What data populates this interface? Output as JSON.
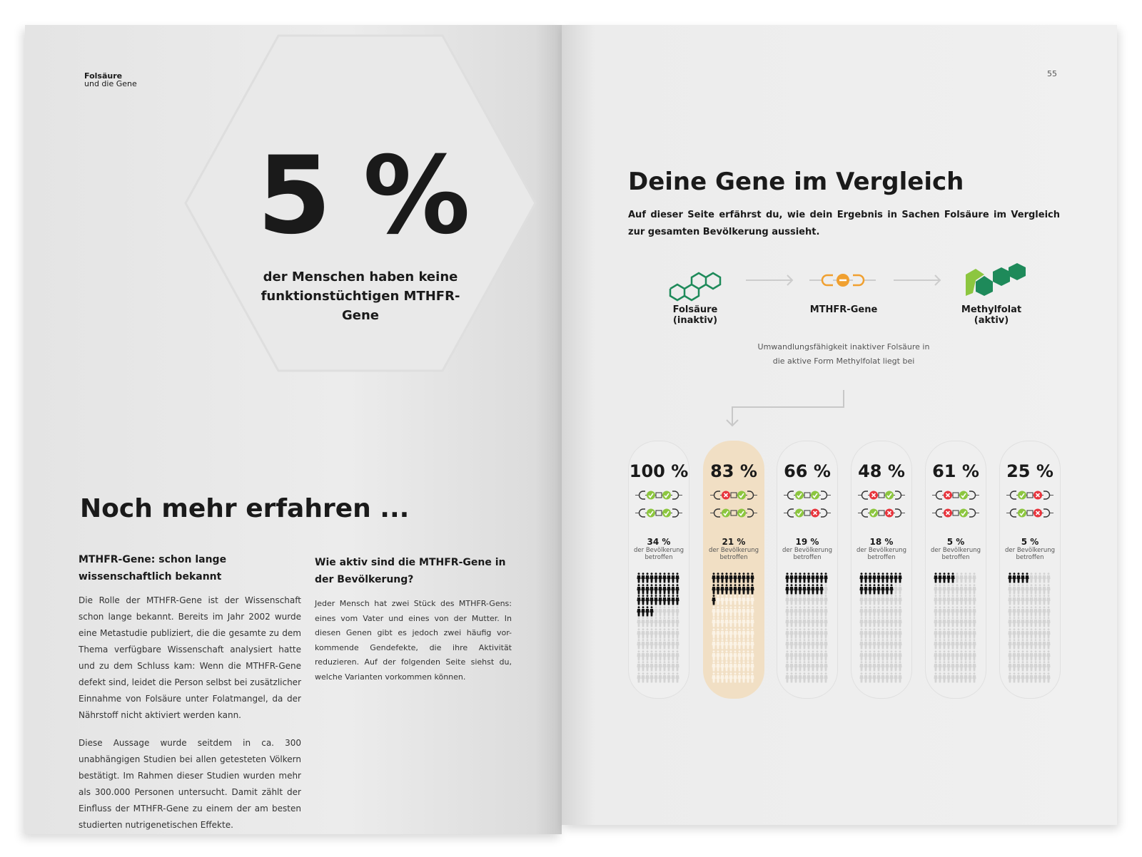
{
  "left_page": {
    "running_head": {
      "line1": "Folsäure",
      "line2": "und die Gene"
    },
    "big_number": "5 %",
    "big_caption": "der Menschen haben keine funktionstüchtigen MTHFR-Gene",
    "section_title": "Noch mehr erfahren ...",
    "col1": {
      "heading": "MTHFR-Gene: schon lange wissenschaftlich bekannt",
      "para1": "Die Rolle der MTHFR-Gene ist der Wissenschaft schon lange bekannt. Bereits im Jahr 2002 wurde eine Metastudie publiziert, die die gesamte zu dem Thema verfügbare Wissenschaft analysiert hatte und zu dem Schluss kam: Wenn die MTHFR-Gene defekt sind, leidet die Person selbst bei zusätzlicher Einnahme von Folsäure unter Folatmangel, da der Nährstoff nicht aktiviert werden kann.",
      "para2": "Diese Aussage wurde seitdem in ca. 300 unabhängigen Studien bei allen getesteten Völkern bestätigt. Im Rahmen dieser Studien wurden mehr als 300.000 Personen untersucht. Damit zählt der Einfluss der MTHFR-Gene zu einem der am besten studierten nutrigenetischen Effekte."
    },
    "col2": {
      "heading": "Wie aktiv sind die MTHFR-Gene in der Bevölkerung?",
      "para1": "Jeder Mensch hat zwei Stück des MTHFR-Gens: eines vom Vater und eines von der Mutter. In diesen Genen gibt es jedoch zwei häufig vor- kommende Gendefekte, die ihre Aktivität reduzieren. Auf der folgenden Seite siehst du, welche Varianten vorkommen können."
    }
  },
  "right_page": {
    "page_number": "55",
    "title": "Deine Gene im Vergleich",
    "intro": "Auf dieser Seite erfährst du, wie dein Ergebnis in Sachen Folsäure im Vergleich zur gesamten Bevölkerung aussieht.",
    "flow": [
      {
        "label": "Folsäure",
        "sub": "(inaktiv)",
        "icon": "molecule-outline-icon"
      },
      {
        "label": "MTHFR-Gene",
        "sub": "",
        "icon": "gene-icon"
      },
      {
        "label": "Methylfolat",
        "sub": "(aktiv)",
        "icon": "molecule-filled-icon"
      }
    ],
    "description": "Umwandlungsfähigkeit inaktiver Folsäure in die aktive Form Methylfolat liegt bei",
    "affected_label": "der Bevölkerung betroffen",
    "colors": {
      "ok": "#8cc63f",
      "defect": "#e8343c",
      "highlight": "#f1dfc4",
      "gene": "#f0a030",
      "molecule": "#1e8a5a"
    },
    "cards": [
      {
        "activity": "100 %",
        "share": "34 %",
        "affected": 34,
        "genes": [
          [
            "ok",
            "ok"
          ],
          [
            "ok",
            "ok"
          ]
        ],
        "highlight": false
      },
      {
        "activity": "83 %",
        "share": "21 %",
        "affected": 21,
        "genes": [
          [
            "defect",
            "ok"
          ],
          [
            "ok",
            "ok"
          ]
        ],
        "highlight": true
      },
      {
        "activity": "66 %",
        "share": "19 %",
        "affected": 19,
        "genes": [
          [
            "ok",
            "ok"
          ],
          [
            "ok",
            "defect"
          ]
        ],
        "highlight": false
      },
      {
        "activity": "48 %",
        "share": "18 %",
        "affected": 18,
        "genes": [
          [
            "defect",
            "ok"
          ],
          [
            "ok",
            "defect"
          ]
        ],
        "highlight": false
      },
      {
        "activity": "61 %",
        "share": "5 %",
        "affected": 5,
        "genes": [
          [
            "defect",
            "ok"
          ],
          [
            "defect",
            "ok"
          ]
        ],
        "highlight": false
      },
      {
        "activity": "25 %",
        "share": "5 %",
        "affected": 5,
        "genes": [
          [
            "ok",
            "defect"
          ],
          [
            "ok",
            "defect"
          ]
        ],
        "highlight": false
      }
    ]
  }
}
